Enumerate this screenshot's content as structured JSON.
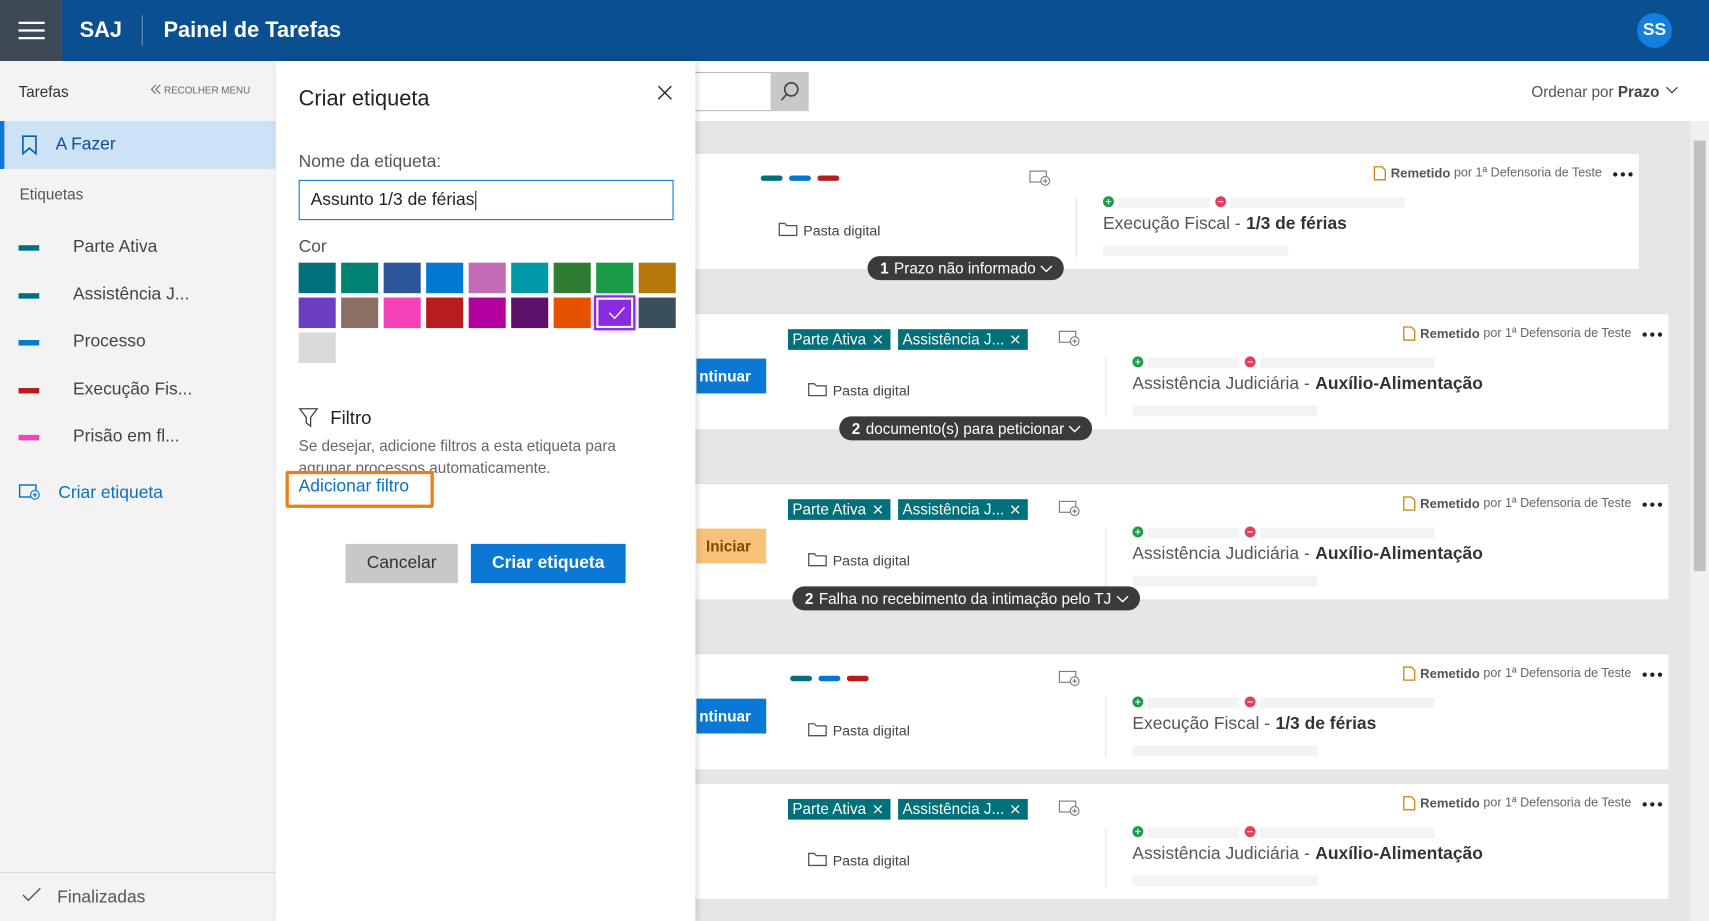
{
  "header": {
    "app": "SAJ",
    "title": "Painel de Tarefas",
    "avatar": "SS"
  },
  "sidebar": {
    "section": "Tarefas",
    "collapse": "RECOLHER MENU",
    "active": "A Fazer",
    "labels_heading": "Etiquetas",
    "labels": [
      {
        "name": "Parte Ativa",
        "color": "#00707a"
      },
      {
        "name": "Assistência J...",
        "color": "#00707a"
      },
      {
        "name": "Processo",
        "color": "#0078d4"
      },
      {
        "name": "Execução Fis...",
        "color": "#b91c1c"
      },
      {
        "name": "Prisão em fl...",
        "color": "#f542b9"
      }
    ],
    "create": "Criar etiqueta",
    "finished": "Finalizadas"
  },
  "toolbar": {
    "sort_prefix": "Ordenar por",
    "sort_value": "Prazo"
  },
  "dialog": {
    "title": "Criar etiqueta",
    "name_label": "Nome da etiqueta:",
    "name_value": "Assunto 1/3 de férias",
    "color_label": "Cor",
    "colors": [
      "#00707a",
      "#008272",
      "#2b579a",
      "#0078d4",
      "#c46bb5",
      "#0099a8",
      "#2e7d32",
      "#1a9c47",
      "#b6770b",
      "#6b3fbf",
      "#8d6e63",
      "#f542b9",
      "#b91c1c",
      "#b4009e",
      "#5c126b",
      "#e65100",
      "#8a2be2",
      "#3a4f5e",
      "#d9d9d9"
    ],
    "selected_color": 16,
    "filter_title": "Filtro",
    "filter_text": "Se desejar, adicione filtros a esta etiqueta para agrupar processos automaticamente.",
    "add_filter": "Adicionar filtro",
    "cancel": "Cancelar",
    "submit": "Criar etiqueta"
  },
  "cards": [
    {
      "tag_colors": [
        "#00707a",
        "#0078d4",
        "#b91c1c"
      ],
      "folder": "Pasta digital",
      "status": "Remetido",
      "by": "por 1ª Defensoria de Teste",
      "subject": "Execução Fiscal -",
      "detail": "1/3 de férias",
      "badge_count": 1,
      "badge_text": "Prazo não informado"
    },
    {
      "tags": [
        "Parte Ativa",
        "Assistência J..."
      ],
      "action": "ntinuar",
      "action_color": "#0a78d4",
      "folder": "Pasta digital",
      "status": "Remetido",
      "by": "por 1ª Defensoria de Teste",
      "subject": "Assistência Judiciária -",
      "detail": "Auxílio-Alimentação",
      "badge_count": 2,
      "badge_text": "documento(s) para peticionar"
    },
    {
      "tags": [
        "Parte Ativa",
        "Assistência J..."
      ],
      "action": "Iniciar",
      "action_color": "#f8c27a",
      "folder": "Pasta digital",
      "status": "Remetido",
      "by": "por 1ª Defensoria de Teste",
      "subject": "Assistência Judiciária -",
      "detail": "Auxílio-Alimentação",
      "badge_count": 2,
      "badge_text": "Falha no recebimento da intimação pelo TJ"
    },
    {
      "tag_colors": [
        "#00707a",
        "#0078d4",
        "#b91c1c"
      ],
      "action": "ntinuar",
      "action_color": "#0a78d4",
      "folder": "Pasta digital",
      "status": "Remetido",
      "by": "por 1ª Defensoria de Teste",
      "subject": "Execução Fiscal -",
      "detail": "1/3 de férias"
    },
    {
      "tags": [
        "Parte Ativa",
        "Assistência J..."
      ],
      "folder": "Pasta digital",
      "status": "Remetido",
      "by": "por 1ª Defensoria de Teste",
      "subject": "Assistência Judiciária -",
      "detail": "Auxílio-Alimentação"
    }
  ]
}
